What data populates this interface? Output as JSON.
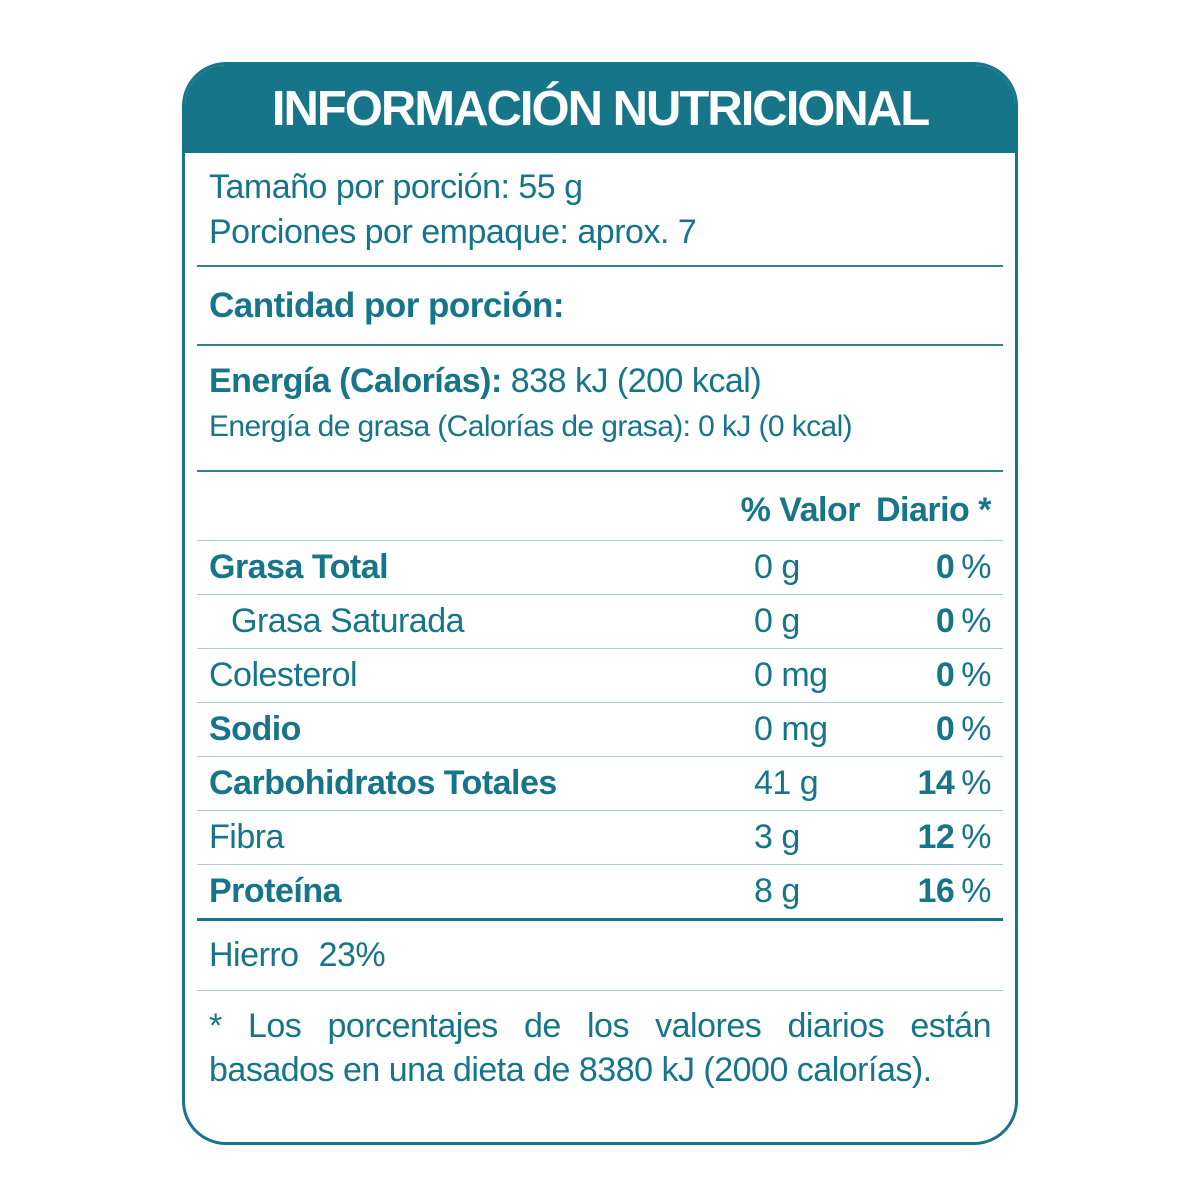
{
  "colors": {
    "teal": "#17758a",
    "section_divider": "#2e8093",
    "row_divider": "#abccd4"
  },
  "header": {
    "title": "INFORMACIÓN NUTRICIONAL"
  },
  "serving": {
    "size_line": "Tamaño por porción: 55 g",
    "per_pack_line": "Porciones por empaque: aprox. 7"
  },
  "section_heading": "Cantidad por porción:",
  "energy": {
    "label": "Energía (Calorías):",
    "value": "838 kJ (200 kcal)",
    "fat_line": "Energía de grasa (Calorías de grasa): 0 kJ (0 kcal)"
  },
  "table": {
    "dv_header_left": "% Valor",
    "dv_header_right": "Diario *",
    "percent": "%",
    "rows": [
      {
        "label": "Grasa Total",
        "amount": "0 g",
        "dv": "0"
      },
      {
        "label": "Grasa Saturada",
        "amount": "0 g",
        "dv": "0"
      },
      {
        "label": "Colesterol",
        "amount": "0 mg",
        "dv": "0"
      },
      {
        "label": "Sodio",
        "amount": "0 mg",
        "dv": "0"
      },
      {
        "label": "Carbohidratos Totales",
        "amount": "41 g",
        "dv": "14"
      },
      {
        "label": "Fibra",
        "amount": "3 g",
        "dv": "12"
      },
      {
        "label": "Proteína",
        "amount": "8 g",
        "dv": "16"
      }
    ]
  },
  "minerals": {
    "label": "Hierro",
    "value": "23%"
  },
  "footnote": "* Los porcentajes de los valores diarios están basados en una dieta de 8380 kJ (2000 calorías)."
}
